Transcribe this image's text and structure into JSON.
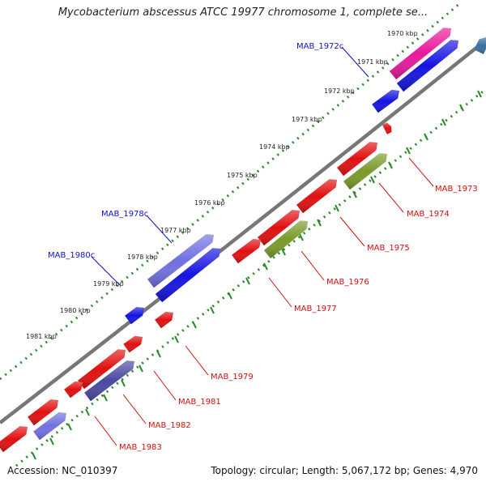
{
  "title": "Mycobacterium abscessus ATCC 19977 chromosome 1, complete se...",
  "footer": {
    "accession": "Accession: NC_010397",
    "topology": "Topology: circular; Length: 5,067,172 bp; Genes: 4,970"
  },
  "colors": {
    "backbone": "#7a7a7a",
    "dots": "#2a8a2a",
    "forward_gene": "#e01010",
    "reverse_gene": "#1212d8",
    "label_forward": "#d01010",
    "label_reverse": "#1010c8"
  },
  "ticks": [
    {
      "label": "1970 kbp"
    },
    {
      "label": "1971 kbp"
    },
    {
      "label": "1972 kbp"
    },
    {
      "label": "1973 kbp"
    },
    {
      "label": "1974 kbp"
    },
    {
      "label": "1975 kbp"
    },
    {
      "label": "1976 kbp"
    },
    {
      "label": "1977 kbp"
    },
    {
      "label": "1978 kbp"
    },
    {
      "label": "1979 kbp"
    },
    {
      "label": "1980 kbp"
    },
    {
      "label": "1981 kbp"
    }
  ],
  "gene_labels": [
    {
      "name": "MAB_1972c",
      "strand": "reverse"
    },
    {
      "name": "MAB_1978c",
      "strand": "reverse"
    },
    {
      "name": "MAB_1980c",
      "strand": "reverse"
    },
    {
      "name": "MAB_1973",
      "strand": "forward"
    },
    {
      "name": "MAB_1974",
      "strand": "forward"
    },
    {
      "name": "MAB_1975",
      "strand": "forward"
    },
    {
      "name": "MAB_1976",
      "strand": "forward"
    },
    {
      "name": "MAB_1977",
      "strand": "forward"
    },
    {
      "name": "MAB_1979",
      "strand": "forward"
    },
    {
      "name": "MAB_1981",
      "strand": "forward"
    },
    {
      "name": "MAB_1982",
      "strand": "forward"
    },
    {
      "name": "MAB_1983",
      "strand": "forward"
    }
  ]
}
